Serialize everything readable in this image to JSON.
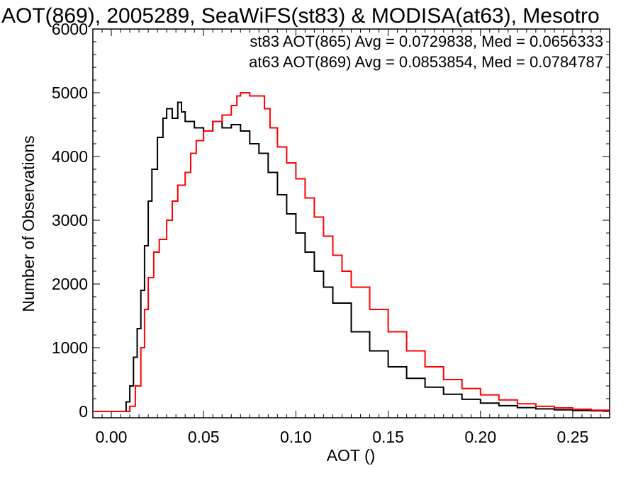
{
  "chart_data": {
    "type": "line",
    "title": "AOT(869), 2005289, SeaWiFS(st83) & MODISA(at63), Mesotro",
    "xlabel": "AOT ()",
    "ylabel": "Number of Observations",
    "xlim": [
      -0.01,
      0.27
    ],
    "ylim": [
      -100,
      6000
    ],
    "xticks": [
      0.0,
      0.05,
      0.1,
      0.15,
      0.2,
      0.25
    ],
    "xtick_labels": [
      "0.00",
      "0.05",
      "0.10",
      "0.15",
      "0.20",
      "0.25"
    ],
    "yticks": [
      0,
      1000,
      2000,
      3000,
      4000,
      5000,
      6000
    ],
    "ytick_labels": [
      "0",
      "1000",
      "2000",
      "3000",
      "4000",
      "5000",
      "6000"
    ],
    "grid": false,
    "step": true,
    "series": [
      {
        "name": "st83",
        "color": "#000000",
        "stats_text": "st83 AOT(865) Avg = 0.0729838, Med = 0.0656333",
        "x": [
          -0.01,
          0.0,
          0.005,
          0.008,
          0.01,
          0.012,
          0.014,
          0.016,
          0.018,
          0.02,
          0.022,
          0.025,
          0.028,
          0.03,
          0.033,
          0.036,
          0.038,
          0.04,
          0.045,
          0.05,
          0.055,
          0.06,
          0.065,
          0.07,
          0.075,
          0.08,
          0.085,
          0.09,
          0.095,
          0.1,
          0.105,
          0.11,
          0.115,
          0.12,
          0.13,
          0.14,
          0.15,
          0.16,
          0.17,
          0.18,
          0.19,
          0.2,
          0.21,
          0.22,
          0.23,
          0.24,
          0.25,
          0.26,
          0.27
        ],
        "values": [
          0,
          0,
          0,
          150,
          400,
          850,
          1300,
          1900,
          2600,
          3300,
          3800,
          4300,
          4600,
          4750,
          4600,
          4850,
          4700,
          4550,
          4450,
          4400,
          4550,
          4450,
          4500,
          4400,
          4200,
          4050,
          3750,
          3400,
          3100,
          2800,
          2500,
          2200,
          1950,
          1700,
          1250,
          950,
          700,
          520,
          380,
          270,
          190,
          130,
          90,
          60,
          40,
          25,
          15,
          10,
          5
        ]
      },
      {
        "name": "at63",
        "color": "#ff0000",
        "stats_text": "at63 AOT(869) Avg = 0.0853854, Med = 0.0784787",
        "x": [
          -0.01,
          0.005,
          0.01,
          0.013,
          0.016,
          0.018,
          0.02,
          0.023,
          0.026,
          0.03,
          0.033,
          0.036,
          0.04,
          0.043,
          0.046,
          0.05,
          0.055,
          0.06,
          0.065,
          0.068,
          0.07,
          0.075,
          0.08,
          0.083,
          0.086,
          0.09,
          0.095,
          0.1,
          0.105,
          0.11,
          0.115,
          0.12,
          0.125,
          0.13,
          0.14,
          0.15,
          0.16,
          0.17,
          0.18,
          0.19,
          0.2,
          0.21,
          0.22,
          0.23,
          0.24,
          0.25,
          0.26,
          0.27
        ],
        "values": [
          0,
          0,
          80,
          400,
          1000,
          1600,
          2100,
          2500,
          2700,
          3000,
          3300,
          3550,
          3750,
          4050,
          4250,
          4400,
          4550,
          4650,
          4800,
          4950,
          5000,
          4950,
          4950,
          4750,
          4450,
          4150,
          3900,
          3650,
          3350,
          3050,
          2750,
          2450,
          2200,
          1950,
          1600,
          1250,
          950,
          700,
          500,
          360,
          260,
          180,
          120,
          80,
          55,
          35,
          20,
          10
        ]
      }
    ]
  }
}
